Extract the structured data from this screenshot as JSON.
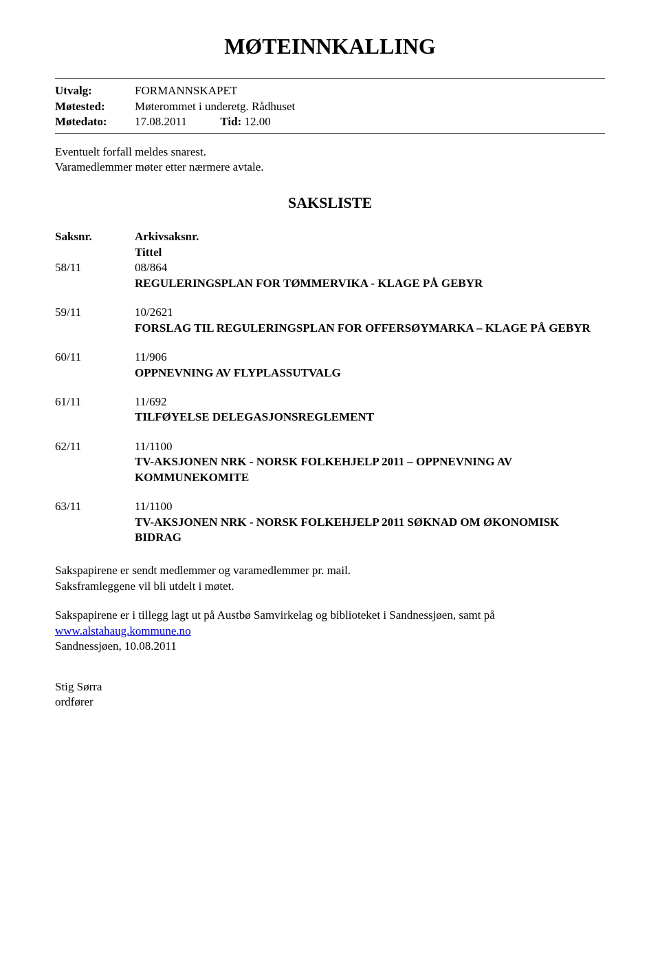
{
  "title": "MØTEINNKALLING",
  "meta": {
    "utvalg_label": "Utvalg:",
    "utvalg_value": "FORMANNSKAPET",
    "motested_label": "Møtested:",
    "motested_value": "Møterommet i underetg. Rådhuset",
    "motedato_label": "Møtedato:",
    "motedato_value": "17.08.2011",
    "tid_label": "Tid:",
    "tid_value": "12.00"
  },
  "paras": {
    "p1": "Eventuelt forfall meldes snarest.",
    "p2": "Varamedlemmer møter etter nærmere avtale."
  },
  "saksliste_title": "SAKSLISTE",
  "header": {
    "col1": "Saksnr.",
    "col2a": "Arkivsaksnr.",
    "col2b": "Tittel"
  },
  "items": [
    {
      "num": "58/11",
      "arkiv": "08/864",
      "title": "REGULERINGSPLAN FOR TØMMERVIKA - KLAGE PÅ GEBYR"
    },
    {
      "num": "59/11",
      "arkiv": "10/2621",
      "title": "FORSLAG TIL REGULERINGSPLAN FOR OFFERSØYMARKA – KLAGE PÅ GEBYR"
    },
    {
      "num": "60/11",
      "arkiv": "11/906",
      "title": "OPPNEVNING AV FLYPLASSUTVALG"
    },
    {
      "num": "61/11",
      "arkiv": "11/692",
      "title": "TILFØYELSE DELEGASJONSREGLEMENT"
    },
    {
      "num": "62/11",
      "arkiv": "11/1100",
      "title": "TV-AKSJONEN NRK - NORSK FOLKEHJELP 2011 – OPPNEVNING AV KOMMUNEKOMITE"
    },
    {
      "num": "63/11",
      "arkiv": "11/1100",
      "title": "TV-AKSJONEN NRK - NORSK FOLKEHJELP 2011 SØKNAD OM ØKONOMISK BIDRAG"
    }
  ],
  "footer": {
    "p1": "Sakspapirene er sendt medlemmer og varamedlemmer pr. mail.",
    "p2": "Saksframleggene vil bli utdelt i møtet.",
    "p3a": "Sakspapirene er i tillegg lagt ut på Austbø Samvirkelag og biblioteket i Sandnessjøen, samt på ",
    "link_text": "www.alstahaug.kommune.no",
    "date": "Sandnessjøen, 10.08.2011",
    "sign_name": "Stig Sørra",
    "sign_role": "ordfører"
  }
}
